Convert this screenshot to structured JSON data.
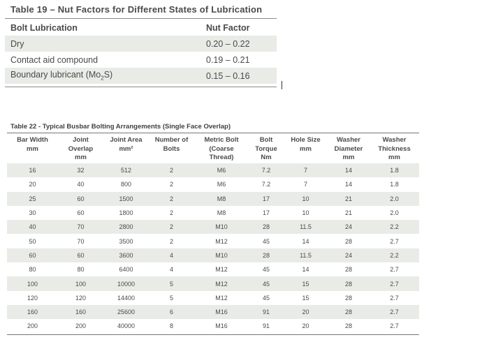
{
  "table19": {
    "title": "Table 19 – Nut Factors for Different States of Lubrication",
    "headers": [
      "Bolt Lubrication",
      "Nut Factor"
    ],
    "rows": [
      {
        "lubrication": "Dry",
        "nut_factor": "0.20 – 0.22"
      },
      {
        "lubrication": "Contact aid compound",
        "nut_factor": "0.19 – 0.21"
      },
      {
        "lubrication_prefix": "Boundary lubricant (Mo",
        "lubrication_sub": "2",
        "lubrication_suffix": "S)",
        "nut_factor": "0.15 – 0.16"
      }
    ]
  },
  "table22": {
    "title": "Table 22 - Typical Busbar Bolting Arrangements (Single Face Overlap)",
    "headers": [
      [
        "Bar Width",
        "mm"
      ],
      [
        "Joint",
        "Overlap",
        "mm"
      ],
      [
        "Joint Area",
        "mm²"
      ],
      [
        "Number of",
        "Bolts"
      ],
      [
        "Metric Bolt",
        "(Coarse",
        "Thread)"
      ],
      [
        "Bolt",
        "Torque",
        "Nm"
      ],
      [
        "Hole Size",
        "mm"
      ],
      [
        "Washer",
        "Diameter",
        "mm"
      ],
      [
        "Washer",
        "Thickness",
        "mm"
      ]
    ],
    "rows": [
      [
        "16",
        "32",
        "512",
        "2",
        "M6",
        "7.2",
        "7",
        "14",
        "1.8"
      ],
      [
        "20",
        "40",
        "800",
        "2",
        "M6",
        "7.2",
        "7",
        "14",
        "1.8"
      ],
      [
        "25",
        "60",
        "1500",
        "2",
        "M8",
        "17",
        "10",
        "21",
        "2.0"
      ],
      [
        "30",
        "60",
        "1800",
        "2",
        "M8",
        "17",
        "10",
        "21",
        "2.0"
      ],
      [
        "40",
        "70",
        "2800",
        "2",
        "M10",
        "28",
        "11.5",
        "24",
        "2.2"
      ],
      [
        "50",
        "70",
        "3500",
        "2",
        "M12",
        "45",
        "14",
        "28",
        "2.7"
      ],
      [
        "60",
        "60",
        "3600",
        "4",
        "M10",
        "28",
        "11.5",
        "24",
        "2.2"
      ],
      [
        "80",
        "80",
        "6400",
        "4",
        "M12",
        "45",
        "14",
        "28",
        "2.7"
      ],
      [
        "100",
        "100",
        "10000",
        "5",
        "M12",
        "45",
        "15",
        "28",
        "2.7"
      ],
      [
        "120",
        "120",
        "14400",
        "5",
        "M12",
        "45",
        "15",
        "28",
        "2.7"
      ],
      [
        "160",
        "160",
        "25600",
        "6",
        "M16",
        "91",
        "20",
        "28",
        "2.7"
      ],
      [
        "200",
        "200",
        "40000",
        "8",
        "M16",
        "91",
        "20",
        "28",
        "2.7"
      ]
    ]
  },
  "colors": {
    "row_shade": "#e9ebe7",
    "rule": "#8a8a8a",
    "text": "#4a4a4a"
  }
}
